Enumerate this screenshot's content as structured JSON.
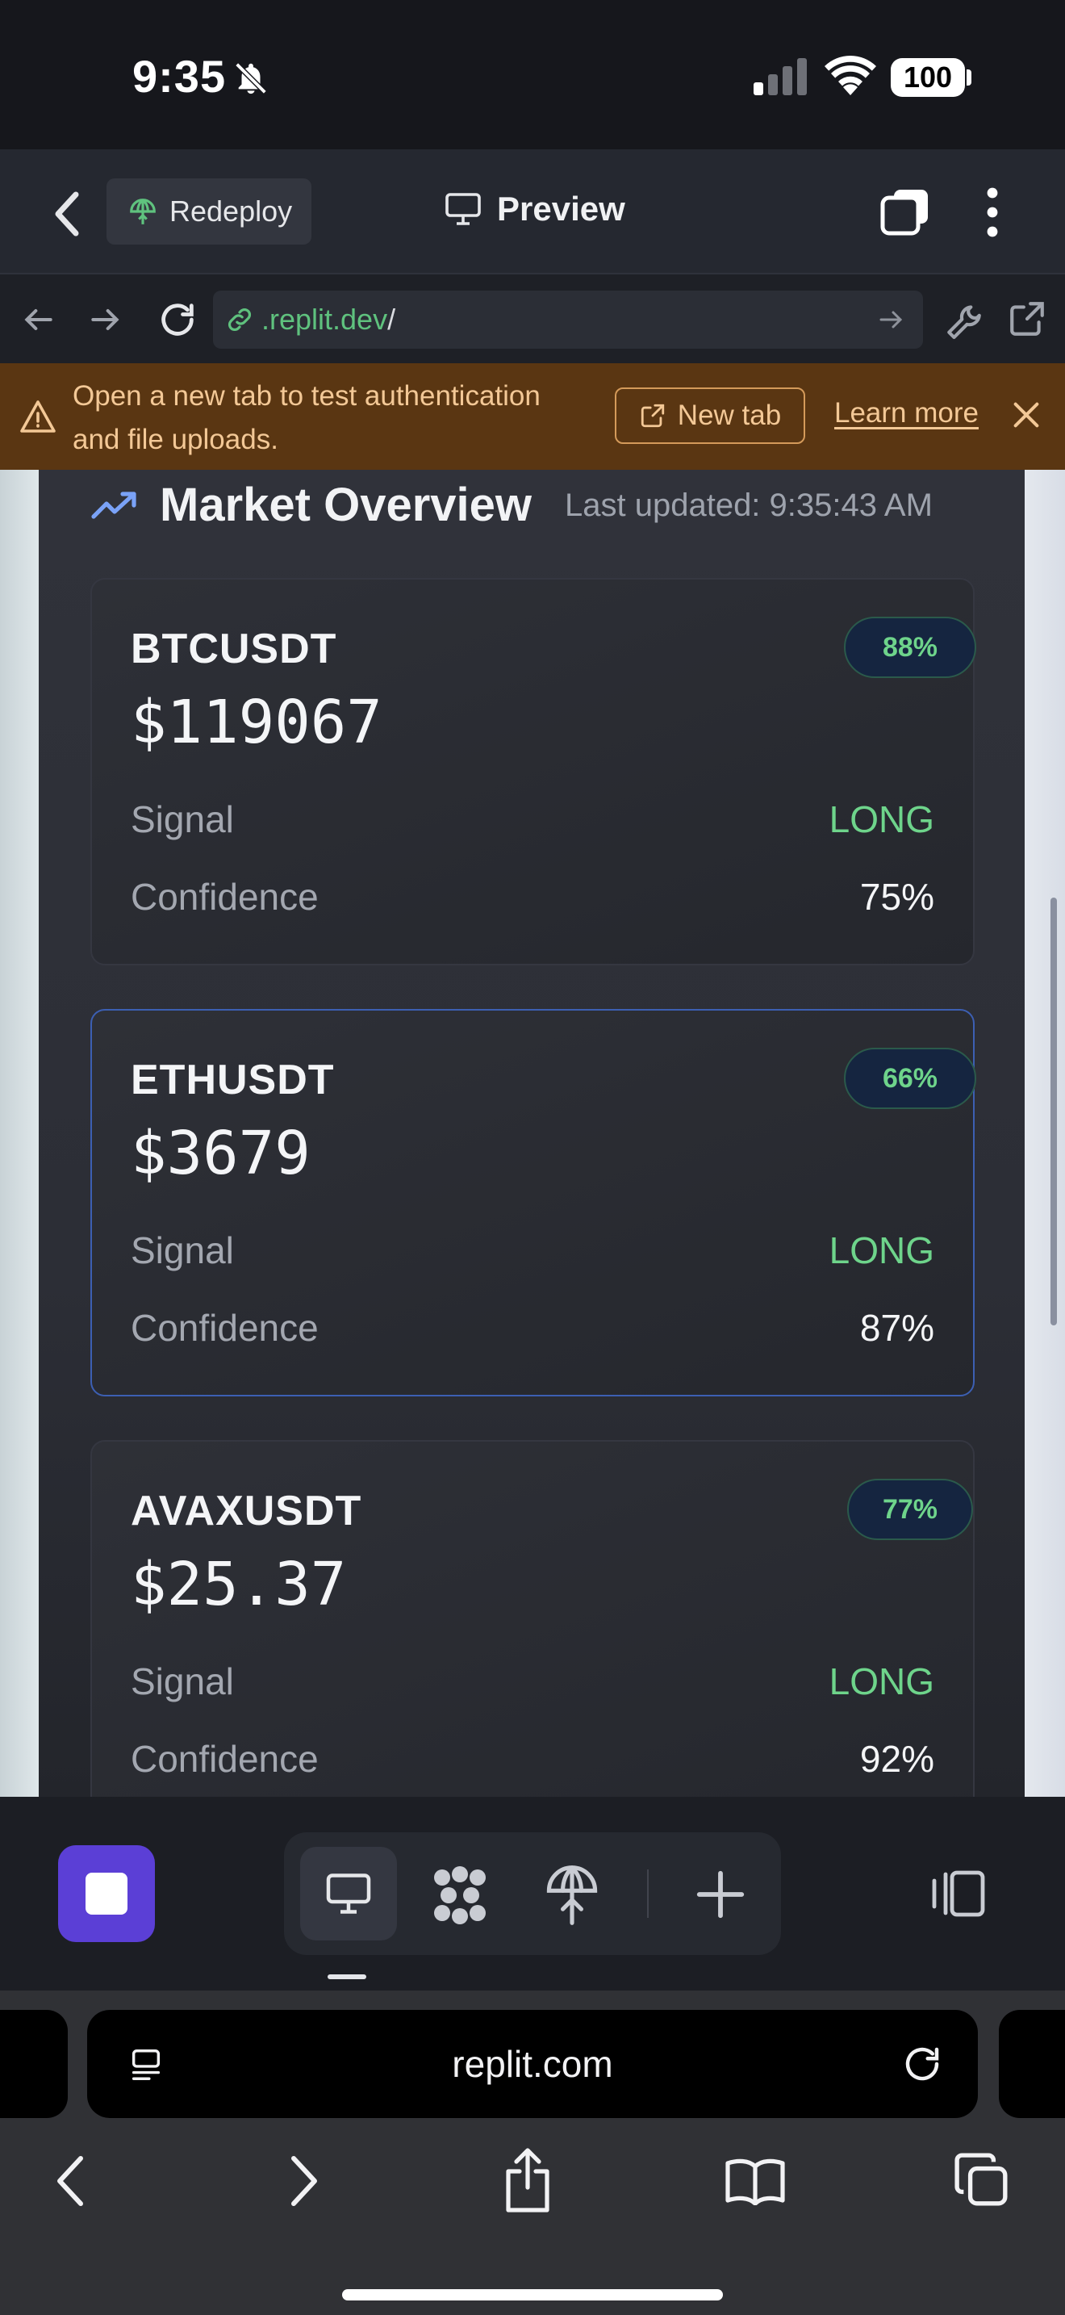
{
  "status_bar": {
    "time": "9:35",
    "battery": "100"
  },
  "header": {
    "redeploy_label": "Redeploy",
    "title": "Preview"
  },
  "url_bar": {
    "host": ".replit.dev",
    "path": "/"
  },
  "banner": {
    "message": "Open a new tab to test authentication and file uploads.",
    "new_tab_label": "New tab",
    "learn_more_label": "Learn more"
  },
  "market": {
    "title": "Market Overview",
    "last_updated": "Last updated: 9:35:43 AM",
    "signal_label": "Signal",
    "confidence_label": "Confidence",
    "cards": [
      {
        "symbol": "BTCUSDT",
        "price": "$119067",
        "badge": "88%",
        "signal": "LONG",
        "confidence": "75%"
      },
      {
        "symbol": "ETHUSDT",
        "price": "$3679",
        "badge": "66%",
        "signal": "LONG",
        "confidence": "87%"
      },
      {
        "symbol": "AVAXUSDT",
        "price": "$25.37",
        "badge": "77%",
        "signal": "LONG",
        "confidence": "92%"
      }
    ]
  },
  "safari": {
    "domain": "replit.com"
  },
  "colors": {
    "accent": "#5b3fd6",
    "signal_long": "#6ed48b",
    "banner_bg": "#5a3612",
    "url_host": "#5fc27e"
  }
}
